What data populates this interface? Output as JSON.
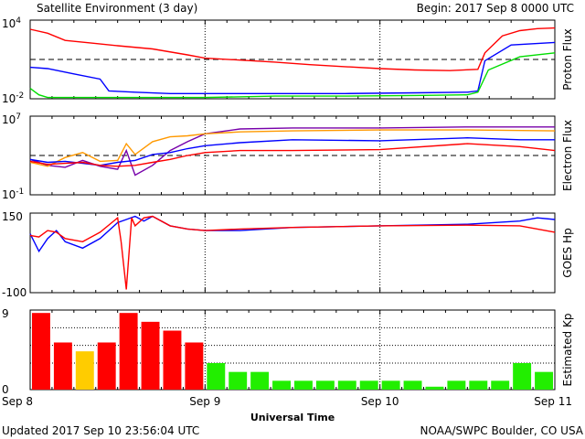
{
  "header": {
    "title": "Satellite Environment (3 day)",
    "begin": "Begin:  2017 Sep 8 0000 UTC"
  },
  "footer": {
    "updated": "Updated 2017 Sep 10 23:56:04 UTC",
    "credit": "NOAA/SWPC Boulder, CO USA"
  },
  "x_axis": {
    "label": "Universal Time",
    "ticks": [
      "Sep 8",
      "Sep 9",
      "Sep 10",
      "Sep 11"
    ]
  },
  "chart_data": [
    {
      "type": "line",
      "ylabel": "Proton Flux",
      "y_tick_labels": [
        {
          "base": "10",
          "exp": "4"
        },
        {
          "base": "10",
          "exp": "-2"
        }
      ],
      "scale": "log",
      "ylim": [
        -2,
        4
      ],
      "reference_line": 1,
      "colors": {
        "p10": "#ff0000",
        "p50": "#0000ff",
        "p100": "#00dd00"
      },
      "series": [
        {
          "color": "#ff0000",
          "x": [
            0,
            0.1,
            0.2,
            0.35,
            0.5,
            0.7,
            0.9,
            1.0,
            1.2,
            1.4,
            1.6,
            1.8,
            2.0,
            2.2,
            2.4,
            2.56,
            2.6,
            2.7,
            2.8,
            2.9,
            3.0
          ],
          "y": [
            3.3,
            3.0,
            2.45,
            2.25,
            2.05,
            1.8,
            1.35,
            1.1,
            0.95,
            0.8,
            0.6,
            0.45,
            0.3,
            0.2,
            0.15,
            0.25,
            1.5,
            2.8,
            3.2,
            3.35,
            3.4
          ]
        },
        {
          "color": "#0000ff",
          "x": [
            0,
            0.1,
            0.25,
            0.4,
            0.45,
            0.6,
            0.8,
            1.0,
            1.4,
            1.8,
            2.2,
            2.5,
            2.56,
            2.6,
            2.75,
            3.0
          ],
          "y": [
            0.4,
            0.3,
            -0.1,
            -0.5,
            -1.4,
            -1.5,
            -1.6,
            -1.6,
            -1.6,
            -1.6,
            -1.55,
            -1.5,
            -1.4,
            0.9,
            2.1,
            2.3
          ]
        },
        {
          "color": "#00dd00",
          "x": [
            0,
            0.02,
            0.05,
            0.1,
            0.3,
            0.6,
            1.0,
            1.4,
            1.8,
            2.2,
            2.5,
            2.56,
            2.62,
            2.8,
            3.0
          ],
          "y": [
            -1.2,
            -1.4,
            -1.7,
            -1.9,
            -1.9,
            -1.9,
            -1.9,
            -1.8,
            -1.8,
            -1.75,
            -1.7,
            -1.5,
            0.2,
            1.2,
            1.5
          ]
        }
      ]
    },
    {
      "type": "line",
      "ylabel": "Electron Flux",
      "y_tick_labels": [
        {
          "base": "10",
          "exp": "7"
        },
        {
          "base": "10",
          "exp": "-1"
        }
      ],
      "scale": "log",
      "ylim": [
        -1,
        7
      ],
      "reference_line": 3,
      "series": [
        {
          "color": "#7700aa",
          "x": [
            0,
            0.1,
            0.2,
            0.3,
            0.4,
            0.5,
            0.55,
            0.6,
            0.7,
            0.8,
            0.9,
            1.0,
            1.2,
            1.5,
            2.0,
            2.5,
            3.0
          ],
          "y": [
            2.6,
            2.0,
            1.8,
            2.5,
            1.9,
            1.6,
            3.5,
            1.0,
            2.0,
            3.5,
            4.4,
            5.2,
            5.7,
            5.8,
            5.8,
            5.9,
            5.9
          ]
        },
        {
          "color": "#ff9900",
          "x": [
            0,
            0.1,
            0.2,
            0.3,
            0.4,
            0.5,
            0.55,
            0.6,
            0.7,
            0.8,
            0.9,
            1.0,
            1.2,
            1.5,
            2.0,
            2.5,
            3.0
          ],
          "y": [
            2.3,
            1.9,
            2.8,
            3.3,
            2.4,
            2.5,
            4.2,
            3.1,
            4.4,
            4.9,
            5.0,
            5.2,
            5.4,
            5.5,
            5.6,
            5.6,
            5.5
          ]
        },
        {
          "color": "#0000ff",
          "x": [
            0,
            0.1,
            0.2,
            0.3,
            0.4,
            0.5,
            0.6,
            0.7,
            0.8,
            0.9,
            1.0,
            1.2,
            1.5,
            2.0,
            2.5,
            2.8,
            3.0
          ],
          "y": [
            2.6,
            2.3,
            2.4,
            2.2,
            2.0,
            2.3,
            2.5,
            3.1,
            3.3,
            3.7,
            4.0,
            4.3,
            4.6,
            4.5,
            4.8,
            4.6,
            4.6
          ]
        },
        {
          "color": "#ff0000",
          "x": [
            0,
            0.1,
            0.2,
            0.3,
            0.4,
            0.5,
            0.6,
            0.7,
            0.8,
            0.9,
            1.0,
            1.2,
            1.5,
            2.0,
            2.5,
            2.8,
            3.0
          ],
          "y": [
            2.4,
            2.1,
            2.2,
            2.3,
            2.0,
            1.9,
            2.0,
            2.3,
            2.6,
            3.0,
            3.3,
            3.5,
            3.5,
            3.6,
            4.2,
            3.9,
            3.5
          ]
        }
      ]
    },
    {
      "type": "line",
      "ylabel": "GOES Hp",
      "y_tick_labels": [
        "150",
        "-100"
      ],
      "tick_label_colors": [
        "#000000",
        "#ff0000"
      ],
      "ylim": [
        -100,
        150
      ],
      "series": [
        {
          "color": "#0000ff",
          "x": [
            0,
            0.05,
            0.1,
            0.15,
            0.2,
            0.3,
            0.4,
            0.5,
            0.55,
            0.6,
            0.65,
            0.7,
            0.8,
            0.9,
            1.0,
            1.2,
            1.5,
            2.0,
            2.5,
            2.8,
            2.9,
            3.0
          ],
          "y": [
            85,
            30,
            70,
            95,
            60,
            40,
            70,
            120,
            130,
            140,
            125,
            140,
            110,
            100,
            95,
            95,
            105,
            110,
            115,
            125,
            135,
            130
          ]
        },
        {
          "color": "#ff0000",
          "x": [
            0,
            0.05,
            0.1,
            0.15,
            0.2,
            0.3,
            0.4,
            0.5,
            0.52,
            0.55,
            0.58,
            0.6,
            0.65,
            0.7,
            0.8,
            0.9,
            1.0,
            1.2,
            1.5,
            2.0,
            2.5,
            2.8,
            2.9,
            3.0
          ],
          "y": [
            80,
            75,
            95,
            90,
            70,
            60,
            90,
            135,
            60,
            -90,
            135,
            110,
            135,
            140,
            110,
            100,
            95,
            100,
            105,
            110,
            112,
            110,
            100,
            90
          ]
        }
      ]
    },
    {
      "type": "bar",
      "ylabel": "Estimated Kp",
      "y_tick_labels": [
        "9",
        "0"
      ],
      "ylim": [
        0,
        9
      ],
      "gridlines": [
        3,
        5,
        7
      ],
      "bar_colors": {
        "green": "#22ee00",
        "yellow": "#ffcc00",
        "red": "#ff0000"
      },
      "values": [
        8.67,
        5.33,
        4.33,
        5.33,
        8.67,
        7.67,
        6.67,
        5.33,
        3.0,
        2.0,
        2.0,
        1.0,
        1.0,
        1.0,
        1.0,
        1.0,
        1.0,
        1.0,
        0.33,
        1.0,
        1.0,
        1.0,
        3.0,
        2.0
      ]
    }
  ]
}
